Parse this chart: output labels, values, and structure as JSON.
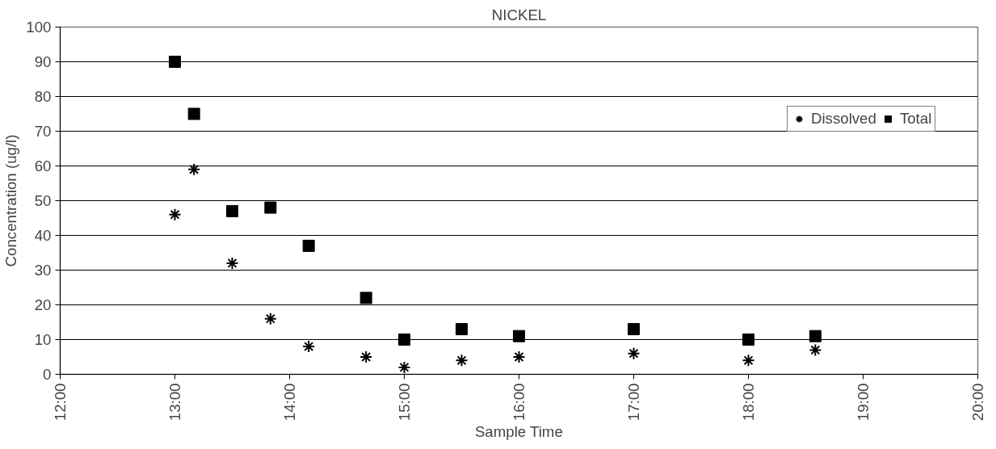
{
  "chart_data": {
    "type": "scatter",
    "title": "NICKEL",
    "xlabel": "Sample Time",
    "ylabel": "Concentration (ug/l)",
    "x": [
      13,
      13.1667,
      13.5,
      13.8333,
      14.1667,
      14.6667,
      15,
      15.5,
      16,
      17,
      18,
      18.5833
    ],
    "series": [
      {
        "name": "Dissolved",
        "color": "#000000",
        "marker": "cross",
        "values": [
          46,
          59,
          32,
          16,
          8,
          5,
          2,
          4,
          5,
          6,
          4,
          7
        ]
      },
      {
        "name": "Total",
        "color": "#000000",
        "marker": "square",
        "values": [
          90,
          75,
          47,
          48,
          37,
          22,
          10,
          13,
          11,
          13,
          10,
          11
        ]
      }
    ],
    "xlim": [
      12,
      20
    ],
    "xticks": [
      {
        "value": 12,
        "label": "12:00"
      },
      {
        "value": 13,
        "label": "13:00"
      },
      {
        "value": 14,
        "label": "14:00"
      },
      {
        "value": 15,
        "label": "15:00"
      },
      {
        "value": 16,
        "label": "16:00"
      },
      {
        "value": 17,
        "label": "17:00"
      },
      {
        "value": 18,
        "label": "18:00"
      },
      {
        "value": 19,
        "label": "19:00"
      },
      {
        "value": 20,
        "label": "20:00"
      }
    ],
    "ylim": [
      0,
      100
    ],
    "yticks": [
      0,
      10,
      20,
      30,
      40,
      50,
      60,
      70,
      80,
      90,
      100
    ],
    "grid": "y",
    "legend": "right"
  }
}
